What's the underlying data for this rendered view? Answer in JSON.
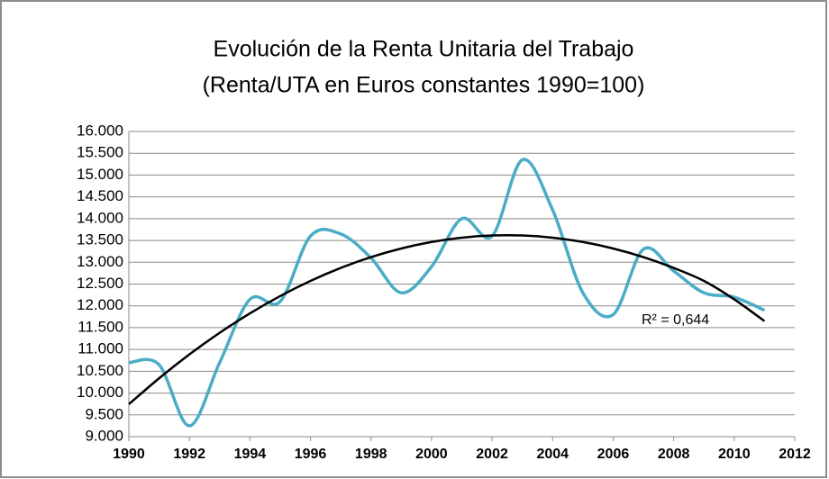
{
  "chart_data": {
    "type": "line",
    "title": "Evolución de la Renta Unitaria del Trabajo",
    "subtitle": "(Renta/UTA en Euros constantes 1990=100)",
    "annotation": "R² = 0,644",
    "x": [
      1990,
      1991,
      1992,
      1993,
      1994,
      1995,
      1996,
      1997,
      1998,
      1999,
      2000,
      2001,
      2002,
      2003,
      2004,
      2005,
      2006,
      2007,
      2008,
      2009,
      2010,
      2011
    ],
    "series": [
      {
        "color": "#4bacc6",
        "smooth": true,
        "values": [
          10700,
          10650,
          9250,
          10700,
          12150,
          12100,
          13600,
          13650,
          13100,
          12300,
          12900,
          14000,
          13600,
          15350,
          14200,
          12300,
          11800,
          13300,
          12800,
          12300,
          12200,
          11900
        ]
      },
      {
        "color": "#000000",
        "smooth": true,
        "values": [
          9745,
          10340,
          10886,
          11382,
          11828,
          12225,
          12572,
          12870,
          13118,
          13316,
          13465,
          13564,
          13614,
          13614,
          13564,
          13465,
          13316,
          13118,
          12870,
          12572,
          12150,
          11650
        ]
      }
    ],
    "xlim": [
      1990,
      2012
    ],
    "xticks": [
      1990,
      1992,
      1994,
      1996,
      1998,
      2000,
      2002,
      2004,
      2006,
      2008,
      2010,
      2012
    ],
    "ylim": [
      9000,
      16000
    ],
    "yticks": [
      {
        "value": 9000,
        "label": "9.000"
      },
      {
        "value": 9500,
        "label": "9.500"
      },
      {
        "value": 10000,
        "label": "10.000"
      },
      {
        "value": 10500,
        "label": "10.500"
      },
      {
        "value": 11000,
        "label": "11.000"
      },
      {
        "value": 11500,
        "label": "11.500"
      },
      {
        "value": 12000,
        "label": "12.000"
      },
      {
        "value": 12500,
        "label": "12.500"
      },
      {
        "value": 13000,
        "label": "13.000"
      },
      {
        "value": 13500,
        "label": "13.500"
      },
      {
        "value": 14000,
        "label": "14.000"
      },
      {
        "value": 14500,
        "label": "14.500"
      },
      {
        "value": 15000,
        "label": "15.000"
      },
      {
        "value": 15500,
        "label": "15.500"
      },
      {
        "value": 16000,
        "label": "16.000"
      }
    ],
    "grid": true
  }
}
